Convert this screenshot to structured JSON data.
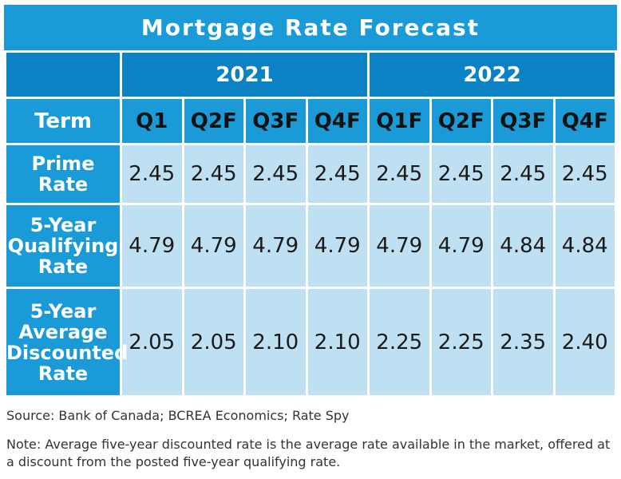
{
  "chart_data": {
    "type": "table",
    "title": "Mortgage Rate Forecast",
    "years": [
      "2021",
      "2022"
    ],
    "term_label": "Term",
    "columns": [
      "Q1",
      "Q2F",
      "Q3F",
      "Q4F",
      "Q1F",
      "Q2F",
      "Q3F",
      "Q4F"
    ],
    "rows": [
      {
        "label": "Prime Rate",
        "values": [
          "2.45",
          "2.45",
          "2.45",
          "2.45",
          "2.45",
          "2.45",
          "2.45",
          "2.45"
        ]
      },
      {
        "label": "5-Year Qualifying Rate",
        "values": [
          "4.79",
          "4.79",
          "4.79",
          "4.79",
          "4.79",
          "4.79",
          "4.84",
          "4.84"
        ]
      },
      {
        "label": "5-Year Average Discounted Rate",
        "values": [
          "2.05",
          "2.05",
          "2.10",
          "2.10",
          "2.25",
          "2.25",
          "2.35",
          "2.40"
        ]
      }
    ],
    "source": "Source: Bank of Canada; BCREA Economics; Rate Spy",
    "note": "Note: Average five-year discounted rate is the average rate available in the market, offered at a discount from the posted five-year qualifying rate."
  },
  "colors": {
    "title_bg": "#1a9ad6",
    "year_bg": "#0a82c4",
    "header_bg": "#1a9ad6",
    "cell_bg": "#bfe0f3"
  }
}
